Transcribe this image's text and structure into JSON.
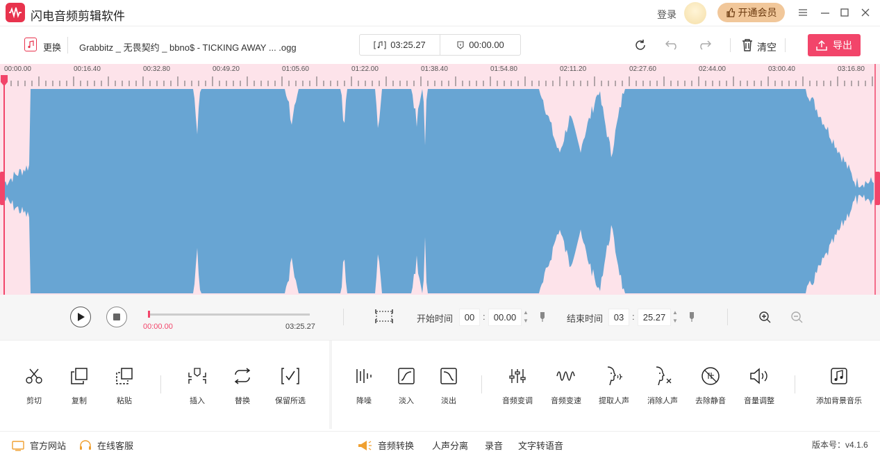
{
  "app": {
    "title": "闪电音频剪辑软件",
    "login_label": "登录",
    "vip_label": "开通会员"
  },
  "toolbar": {
    "replace_label": "更换",
    "filename": "Grabbitz _ 无畏契约 _ bbno$ - TICKING AWAY ... .ogg",
    "duration": "03:25.27",
    "selection_duration": "00:00.00",
    "clear_label": "清空",
    "export_label": "导出"
  },
  "ruler": {
    "labels": [
      "00:00.00",
      "00:16.40",
      "00:32.80",
      "00:49.20",
      "01:05.60",
      "01:22.00",
      "01:38.40",
      "01:54.80",
      "02:11.20",
      "02:27.60",
      "02:44.00",
      "03:00.40",
      "03:16.80"
    ]
  },
  "playback": {
    "current_time": "00:00.00",
    "total_time": "03:25.27",
    "progress": 0.0,
    "start_label": "开始时间",
    "start_min": "00",
    "start_sec": "00.00",
    "end_label": "结束时间",
    "end_min": "03",
    "end_sec": "25.27"
  },
  "tools_left": [
    {
      "label": "剪切",
      "icon": "scissors-icon"
    },
    {
      "label": "复制",
      "icon": "copy-icon"
    },
    {
      "label": "粘贴",
      "icon": "paste-icon"
    },
    {
      "label": "插入",
      "icon": "insert-icon"
    },
    {
      "label": "替换",
      "icon": "replace-icon"
    },
    {
      "label": "保留所选",
      "icon": "keep-selection-icon"
    }
  ],
  "tools_right": [
    {
      "label": "降噪",
      "icon": "denoise-icon"
    },
    {
      "label": "淡入",
      "icon": "fade-in-icon"
    },
    {
      "label": "淡出",
      "icon": "fade-out-icon"
    },
    {
      "label": "音频变调",
      "icon": "pitch-icon"
    },
    {
      "label": "音频变速",
      "icon": "speed-icon"
    },
    {
      "label": "提取人声",
      "icon": "extract-vocal-icon"
    },
    {
      "label": "消除人声",
      "icon": "remove-vocal-icon"
    },
    {
      "label": "去除静音",
      "icon": "remove-silence-icon"
    },
    {
      "label": "音量调整",
      "icon": "volume-icon"
    },
    {
      "label": "添加背景音乐",
      "icon": "bgm-icon"
    }
  ],
  "footer": {
    "website": "官方网站",
    "support": "在线客服",
    "links": [
      "音频转换",
      "人声分离",
      "录音",
      "文字转语音"
    ],
    "version": "版本号：v4.1.6"
  },
  "colors": {
    "accent": "#f2456a",
    "wave": "#68a5d3",
    "wave_bg": "#fde3ea"
  }
}
